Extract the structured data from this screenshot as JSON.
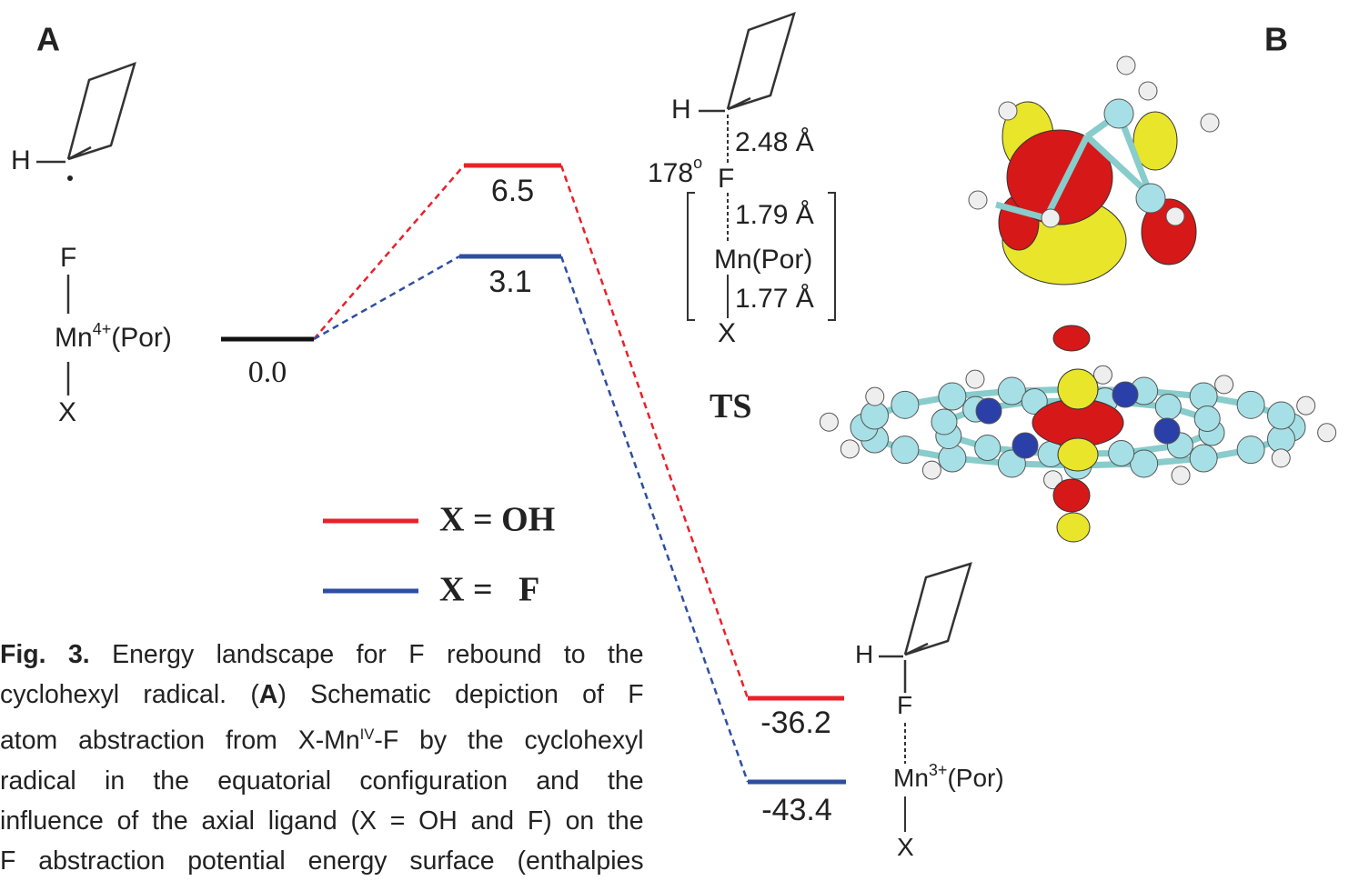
{
  "panel_labels": {
    "a": "A",
    "b": "B"
  },
  "reactant": {
    "h": "H",
    "f": "F",
    "metal": "Mn",
    "charge": "4+",
    "ligand": "(Por)",
    "x": "X"
  },
  "levels": {
    "reactant": "0.0",
    "ts_oh": "6.5",
    "ts_f": "3.1",
    "product_oh": "-36.2",
    "product_f": "-43.4"
  },
  "transition_state": {
    "h": "H",
    "h_f_distance": "2.48 Å",
    "angle": "178",
    "angle_unit": "o",
    "f": "F",
    "f_mn_distance": "1.79 Å",
    "metal": "Mn(Por)",
    "mn_x_distance": "1.77 Å",
    "x": "X",
    "label": "TS"
  },
  "legend": [
    {
      "label": "X = OH",
      "color": "#e8212a"
    },
    {
      "label": "X =   F",
      "color": "#2e4ea2"
    }
  ],
  "product": {
    "h": "H",
    "f": "F",
    "metal": "Mn",
    "charge": "3+",
    "ligand": "(Por)",
    "x": "X"
  },
  "caption": {
    "label": "Fig. 3.",
    "first_line": "Energy landscape for F rebound to the",
    "second_line": {
      "before": "cyclohexyl radical. (",
      "bold": "A",
      "after": ") Schematic depiction of F"
    },
    "third_line": {
      "before": "atom abstraction from X-Mn",
      "superscript": "IV",
      "after": "-F by the cyclohexyl"
    },
    "more_lines": [
      "radical in the equatorial configuration and the",
      "influence of the axial ligand (X = OH and F) on the",
      "F abstraction potential energy surface (enthalpies"
    ]
  }
}
